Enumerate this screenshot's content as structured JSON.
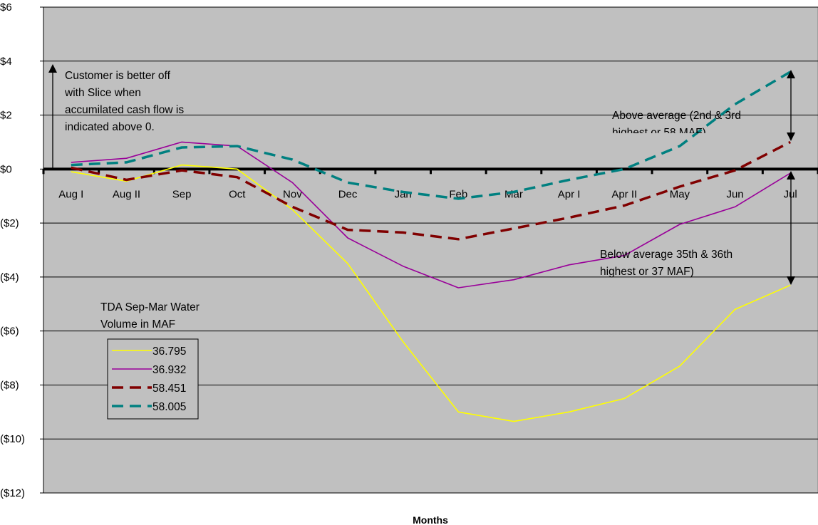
{
  "chart_data": {
    "type": "line",
    "xlabel": "Months",
    "ylim": [
      -12,
      6
    ],
    "yticks": [
      6,
      4,
      2,
      0,
      -2,
      -4,
      -6,
      -8,
      -10,
      -12
    ],
    "ytick_labels": [
      "$6",
      "$4",
      "$2",
      "$0",
      "($2)",
      "($4)",
      "($6)",
      "($8)",
      "($10)",
      "($12)"
    ],
    "categories": [
      "Aug I",
      "Aug II",
      "Sep",
      "Oct",
      "Nov",
      "Dec",
      "Jan",
      "Feb",
      "Mar",
      "Apr I",
      "Apr II",
      "May",
      "Jun",
      "Jul"
    ],
    "grid": true,
    "legend_title": [
      "TDA Sep-Mar Water",
      "Volume in MAF"
    ],
    "legend_position": "lower-left",
    "series": [
      {
        "name": "36.795",
        "color": "#ffff00",
        "style": "solid",
        "values": [
          -0.1,
          -0.45,
          0.15,
          0.0,
          -1.5,
          -3.5,
          -6.4,
          -9.0,
          -9.35,
          -9.0,
          -8.5,
          -7.3,
          -5.2,
          -4.3
        ]
      },
      {
        "name": "36.932",
        "color": "#990099",
        "style": "solid",
        "values": [
          0.25,
          0.4,
          1.0,
          0.85,
          -0.5,
          -2.55,
          -3.6,
          -4.4,
          -4.1,
          -3.55,
          -3.2,
          -2.05,
          -1.4,
          -0.15
        ]
      },
      {
        "name": "58.451",
        "color": "#800000",
        "style": "dashed",
        "values": [
          0.05,
          -0.4,
          -0.05,
          -0.3,
          -1.4,
          -2.25,
          -2.35,
          -2.6,
          -2.2,
          -1.8,
          -1.35,
          -0.65,
          -0.05,
          1.0
        ]
      },
      {
        "name": "58.005",
        "color": "#008080",
        "style": "dashed",
        "values": [
          0.15,
          0.25,
          0.8,
          0.85,
          0.35,
          -0.5,
          -0.85,
          -1.1,
          -0.85,
          -0.4,
          0.0,
          0.85,
          2.4,
          3.6
        ]
      }
    ],
    "annotations": [
      {
        "lines": [
          "Customer is better off",
          "with Slice when",
          "accumilated cash flow is",
          "indicated above 0."
        ]
      },
      {
        "lines": [
          "Above average (2nd & 3rd",
          "highest or 58 MAF)"
        ]
      },
      {
        "lines": [
          "Below average 35th & 36th",
          "highest or 37 MAF)"
        ]
      }
    ]
  },
  "colors": {
    "plot_background": "#c0c0c0",
    "gridline": "#000000",
    "zero_line": "#000000"
  }
}
